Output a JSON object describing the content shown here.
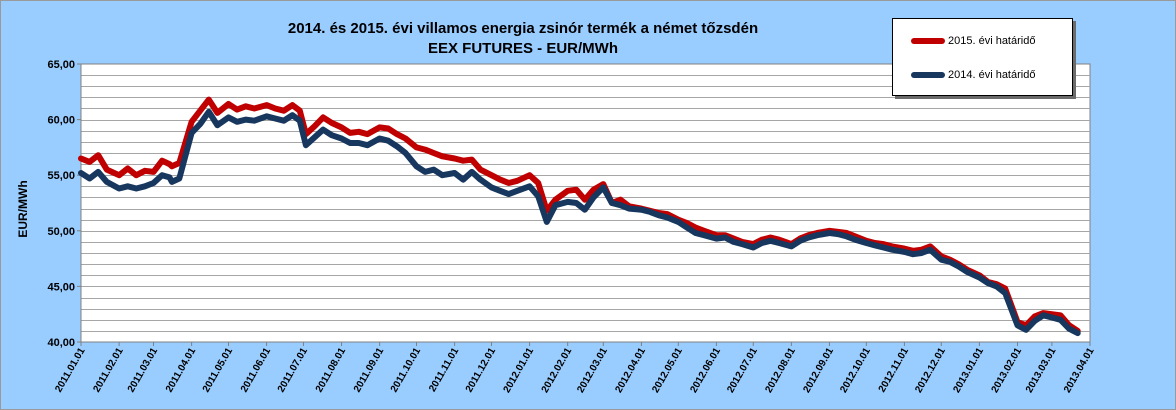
{
  "chart_data": {
    "type": "line",
    "title": "2014. és 2015. évi villamos energia zsinór termék a német tőzsdén",
    "subtitle": "EEX FUTURES - EUR/MWh",
    "ylabel": "EUR/MWh",
    "xlabel": "",
    "ylim": [
      40,
      65
    ],
    "yticks": [
      "40,00",
      "45,00",
      "50,00",
      "55,00",
      "60,00",
      "65,00"
    ],
    "xticks": [
      "2011.01.01",
      "2011.02.01",
      "2011.03.01",
      "2011.04.01",
      "2011.05.01",
      "2011.06.01",
      "2011.07.01",
      "2011.08.01",
      "2011.09.01",
      "2011.10.01",
      "2011.11.01",
      "2011.12.01",
      "2012.01.01",
      "2012.02.01",
      "2012.03.01",
      "2012.04.01",
      "2012.05.01",
      "2012.06.01",
      "2012.07.01",
      "2012.08.01",
      "2012.09.01",
      "2012.10.01",
      "2012.11.01",
      "2012.12.01",
      "2013.01.01",
      "2013.02.01",
      "2013.03.01",
      "2013.04.01"
    ],
    "grid": true,
    "legend_position": "top-right",
    "x": [
      "2011.01.01",
      "2011.01.08",
      "2011.01.15",
      "2011.01.22",
      "2011.02.01",
      "2011.02.08",
      "2011.02.15",
      "2011.02.22",
      "2011.03.01",
      "2011.03.08",
      "2011.03.14",
      "2011.03.16",
      "2011.03.22",
      "2011.04.01",
      "2011.04.08",
      "2011.04.15",
      "2011.04.22",
      "2011.05.01",
      "2011.05.08",
      "2011.05.15",
      "2011.05.22",
      "2011.06.01",
      "2011.06.08",
      "2011.06.15",
      "2011.06.22",
      "2011.06.28",
      "2011.07.03",
      "2011.07.10",
      "2011.07.17",
      "2011.07.24",
      "2011.08.01",
      "2011.08.08",
      "2011.08.15",
      "2011.08.22",
      "2011.09.01",
      "2011.09.08",
      "2011.09.15",
      "2011.09.22",
      "2011.10.01",
      "2011.10.08",
      "2011.10.15",
      "2011.10.22",
      "2011.11.01",
      "2011.11.08",
      "2011.11.15",
      "2011.11.22",
      "2011.12.01",
      "2011.12.08",
      "2011.12.15",
      "2011.12.22",
      "2012.01.01",
      "2012.01.08",
      "2012.01.15",
      "2012.01.22",
      "2012.02.01",
      "2012.02.08",
      "2012.02.15",
      "2012.02.22",
      "2012.03.01",
      "2012.03.08",
      "2012.03.15",
      "2012.03.22",
      "2012.04.01",
      "2012.04.08",
      "2012.04.15",
      "2012.04.22",
      "2012.05.01",
      "2012.05.08",
      "2012.05.15",
      "2012.05.22",
      "2012.06.01",
      "2012.06.08",
      "2012.06.15",
      "2012.06.22",
      "2012.07.01",
      "2012.07.08",
      "2012.07.15",
      "2012.07.22",
      "2012.08.01",
      "2012.08.08",
      "2012.08.15",
      "2012.08.22",
      "2012.09.01",
      "2012.09.08",
      "2012.09.15",
      "2012.09.22",
      "2012.10.01",
      "2012.10.08",
      "2012.10.15",
      "2012.10.22",
      "2012.11.01",
      "2012.11.08",
      "2012.11.15",
      "2012.11.22",
      "2012.12.01",
      "2012.12.08",
      "2012.12.15",
      "2012.12.22",
      "2013.01.01",
      "2013.01.08",
      "2013.01.15",
      "2013.01.22",
      "2013.02.01",
      "2013.02.08",
      "2013.02.15",
      "2013.02.22",
      "2013.03.01",
      "2013.03.08",
      "2013.03.15",
      "2013.03.22"
    ],
    "series": [
      {
        "name": "2015. évi határidő",
        "color": "#c00000",
        "values": [
          56.5,
          56.2,
          56.8,
          55.5,
          55.0,
          55.6,
          55.0,
          55.4,
          55.3,
          56.3,
          56.0,
          55.8,
          56.1,
          59.8,
          60.8,
          61.8,
          60.6,
          61.4,
          60.9,
          61.2,
          61.0,
          61.3,
          61.0,
          60.8,
          61.3,
          60.8,
          58.7,
          59.4,
          60.2,
          59.7,
          59.3,
          58.8,
          58.9,
          58.7,
          59.3,
          59.2,
          58.7,
          58.3,
          57.5,
          57.3,
          57.0,
          56.7,
          56.5,
          56.3,
          56.4,
          55.5,
          55.0,
          54.6,
          54.3,
          54.5,
          55.0,
          54.3,
          51.8,
          52.8,
          53.6,
          53.7,
          52.8,
          53.7,
          54.2,
          52.5,
          52.8,
          52.2,
          52.0,
          51.8,
          51.6,
          51.5,
          51.0,
          50.7,
          50.3,
          50.0,
          49.6,
          49.6,
          49.3,
          49.0,
          48.8,
          49.2,
          49.4,
          49.2,
          48.8,
          49.3,
          49.6,
          49.8,
          50.0,
          49.9,
          49.8,
          49.5,
          49.1,
          48.9,
          48.8,
          48.6,
          48.4,
          48.2,
          48.3,
          48.6,
          47.7,
          47.4,
          47.0,
          46.5,
          46.0,
          45.4,
          45.2,
          44.8,
          41.8,
          41.5,
          42.3,
          42.6,
          42.5,
          42.4,
          41.5,
          41.0
        ]
      },
      {
        "name": "2014. évi határidő",
        "color": "#17375e",
        "values": [
          55.2,
          54.7,
          55.3,
          54.4,
          53.8,
          54.0,
          53.8,
          54.0,
          54.3,
          55.0,
          54.8,
          54.4,
          54.7,
          58.8,
          59.6,
          60.7,
          59.5,
          60.2,
          59.8,
          60.0,
          59.9,
          60.3,
          60.1,
          59.9,
          60.4,
          59.9,
          57.7,
          58.4,
          59.1,
          58.6,
          58.3,
          57.9,
          57.9,
          57.7,
          58.3,
          58.1,
          57.6,
          57.0,
          55.8,
          55.3,
          55.5,
          55.0,
          55.2,
          54.6,
          55.3,
          54.6,
          53.9,
          53.6,
          53.3,
          53.6,
          54.0,
          53.1,
          50.8,
          52.3,
          52.6,
          52.5,
          51.9,
          53.0,
          53.9,
          52.5,
          52.3,
          52.0,
          51.9,
          51.7,
          51.4,
          51.2,
          50.8,
          50.3,
          49.8,
          49.6,
          49.3,
          49.4,
          49.0,
          48.8,
          48.5,
          48.9,
          49.1,
          48.9,
          48.6,
          49.1,
          49.4,
          49.6,
          49.8,
          49.7,
          49.5,
          49.2,
          48.9,
          48.7,
          48.5,
          48.3,
          48.1,
          47.9,
          48.0,
          48.3,
          47.4,
          47.2,
          46.8,
          46.3,
          45.8,
          45.3,
          45.0,
          44.4,
          41.5,
          41.1,
          41.9,
          42.4,
          42.2,
          42.0,
          41.2,
          40.8
        ]
      }
    ]
  }
}
